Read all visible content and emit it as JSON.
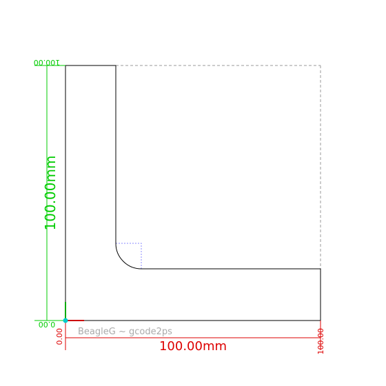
{
  "credit": "BeagleG ~ gcode2ps",
  "x_axis": {
    "start_label": "0.00",
    "end_label": "100.00",
    "dimension_label": "100.00mm",
    "color": "#dd0000"
  },
  "y_axis": {
    "start_label": "0.00",
    "end_label": "100.00",
    "dimension_label": "100.00mm",
    "color": "#00cc00"
  },
  "part": {
    "outline_color": "#000000",
    "bounding_box_color": "#999999",
    "corner_guide_color": "#8888ff",
    "origin_color": "#00cccc"
  }
}
